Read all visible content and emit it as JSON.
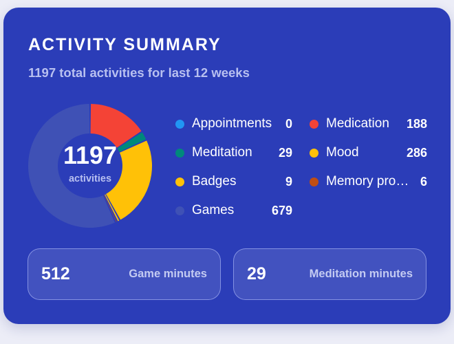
{
  "title": "ACTIVITY SUMMARY",
  "subtitle": "1197 total activities for last 12 weeks",
  "total": {
    "value": "1197",
    "label": "activities"
  },
  "legend": [
    {
      "label": "Appointments",
      "value": "0",
      "color": "#2196f3"
    },
    {
      "label": "Medication",
      "value": "188",
      "color": "#f44336"
    },
    {
      "label": "Meditation",
      "value": "29",
      "color": "#00897b"
    },
    {
      "label": "Mood",
      "value": "286",
      "color": "#ffc107"
    },
    {
      "label": "Badges",
      "value": "9",
      "color": "#ffc107"
    },
    {
      "label": "Memory pro…",
      "value": "6",
      "color": "#bf4e14"
    },
    {
      "label": "Games",
      "value": "679",
      "color": "#3f51b5"
    }
  ],
  "stats": [
    {
      "value": "512",
      "label": "Game minutes"
    },
    {
      "value": "29",
      "label": "Meditation minutes"
    }
  ],
  "chart_data": {
    "type": "pie",
    "title": "",
    "categories": [
      "Appointments",
      "Medication",
      "Meditation",
      "Mood",
      "Badges",
      "Memory pro…",
      "Games"
    ],
    "values": [
      0,
      188,
      29,
      286,
      9,
      6,
      679
    ],
    "colors": [
      "#2196f3",
      "#f44336",
      "#00897b",
      "#ffc107",
      "#ffc107",
      "#bf4e14",
      "#3f51b5"
    ],
    "total": 1197
  }
}
